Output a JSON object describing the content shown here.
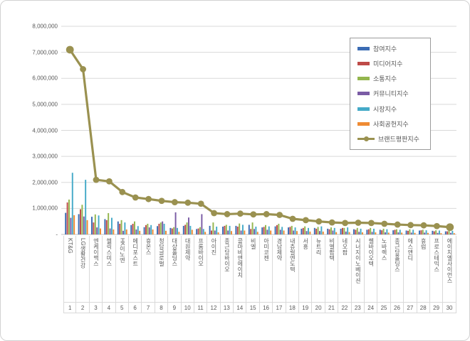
{
  "chart_data": {
    "type": "bar",
    "subtype": "grouped-bars-with-line-overlay",
    "title": "",
    "xlabel": "",
    "ylabel": "",
    "ylim": [
      0,
      8000000
    ],
    "grid": true,
    "legend_position": "right-top",
    "categories": [
      "KT&G",
      "LG생활건강",
      "엔케이맥스",
      "헬릭스미스",
      "HK이노엔",
      "메디포스트",
      "휴온스",
      "청담글로벌",
      "대상홀딩스",
      "대원제약",
      "프롬바이오",
      "아이진",
      "종근당바이오",
      "콜마비앤에이치",
      "비엘",
      "아미코젠",
      "경남제약",
      "내츄럴엔도텍",
      "서흥",
      "뉴트리",
      "비엘팜텍",
      "네오팜",
      "시너지이노베이션",
      "쎌바이오텍",
      "노바렉스",
      "종근당홀딩스",
      "에스앤디",
      "휴럼",
      "프로스테믹스",
      "에이치엘사이언스"
    ],
    "ranks": [
      "1",
      "2",
      "3",
      "4",
      "5",
      "6",
      "7",
      "8",
      "9",
      "10",
      "11",
      "12",
      "13",
      "14",
      "15",
      "16",
      "17",
      "18",
      "19",
      "20",
      "21",
      "22",
      "23",
      "24",
      "25",
      "26",
      "27",
      "28",
      "29",
      "30"
    ],
    "series": [
      {
        "name": "참여지수",
        "color": "#3b6cb4",
        "values": [
          830000,
          780000,
          680000,
          590000,
          500000,
          360000,
          280000,
          320000,
          250000,
          330000,
          210000,
          330000,
          300000,
          330000,
          370000,
          270000,
          310000,
          270000,
          220000,
          250000,
          220000,
          220000,
          200000,
          180000,
          180000,
          160000,
          150000,
          150000,
          140000,
          120000
        ]
      },
      {
        "name": "미디어지수",
        "color": "#be4b48",
        "values": [
          1230000,
          970000,
          460000,
          550000,
          410000,
          410000,
          360000,
          410000,
          230000,
          370000,
          230000,
          150000,
          330000,
          300000,
          210000,
          290000,
          360000,
          290000,
          250000,
          220000,
          200000,
          250000,
          180000,
          200000,
          160000,
          180000,
          140000,
          160000,
          120000,
          120000
        ]
      },
      {
        "name": "소통지수",
        "color": "#94b64e",
        "values": [
          1340000,
          1140000,
          770000,
          820000,
          550000,
          500000,
          410000,
          460000,
          280000,
          460000,
          280000,
          460000,
          370000,
          420000,
          460000,
          360000,
          410000,
          330000,
          310000,
          290000,
          270000,
          250000,
          250000,
          250000,
          220000,
          200000,
          200000,
          180000,
          160000,
          150000
        ]
      },
      {
        "name": "커뮤니티지수",
        "color": "#7a5ca5",
        "values": [
          640000,
          690000,
          270000,
          230000,
          140000,
          190000,
          270000,
          500000,
          850000,
          650000,
          780000,
          150000,
          150000,
          150000,
          210000,
          180000,
          180000,
          150000,
          130000,
          130000,
          150000,
          110000,
          100000,
          100000,
          80000,
          80000,
          70000,
          70000,
          60000,
          60000
        ]
      },
      {
        "name": "시장지수",
        "color": "#45aac8",
        "values": [
          2370000,
          2100000,
          730000,
          640000,
          460000,
          320000,
          360000,
          410000,
          250000,
          330000,
          210000,
          300000,
          330000,
          370000,
          300000,
          310000,
          290000,
          270000,
          250000,
          310000,
          250000,
          270000,
          220000,
          220000,
          200000,
          180000,
          180000,
          160000,
          150000,
          140000
        ]
      },
      {
        "name": "사회공헌지수",
        "color": "#ef8b33",
        "values": [
          740000,
          550000,
          230000,
          190000,
          190000,
          140000,
          190000,
          140000,
          100000,
          180000,
          100000,
          80000,
          130000,
          150000,
          100000,
          150000,
          150000,
          130000,
          110000,
          110000,
          90000,
          90000,
          80000,
          80000,
          70000,
          70000,
          60000,
          60000,
          50000,
          50000
        ]
      }
    ],
    "line_series": {
      "name": "브랜드평판지수",
      "color": "#9a9150",
      "values": [
        7100000,
        6350000,
        2100000,
        2040000,
        1630000,
        1420000,
        1360000,
        1290000,
        1240000,
        1220000,
        1180000,
        820000,
        780000,
        800000,
        770000,
        780000,
        750000,
        600000,
        550000,
        500000,
        460000,
        440000,
        450000,
        440000,
        410000,
        380000,
        360000,
        350000,
        320000,
        280000
      ]
    },
    "y_axis": {
      "max": 8000000,
      "ticks": [
        {
          "value": 0,
          "label": "-"
        },
        {
          "value": 1000000,
          "label": "1,000,000"
        },
        {
          "value": 2000000,
          "label": "2,000,000"
        },
        {
          "value": 3000000,
          "label": "3,000,000"
        },
        {
          "value": 4000000,
          "label": "4,000,000"
        },
        {
          "value": 5000000,
          "label": "5,000,000"
        },
        {
          "value": 6000000,
          "label": "6,000,000"
        },
        {
          "value": 7000000,
          "label": "7,000,000"
        },
        {
          "value": 8000000,
          "label": "8,000,000"
        }
      ]
    }
  }
}
